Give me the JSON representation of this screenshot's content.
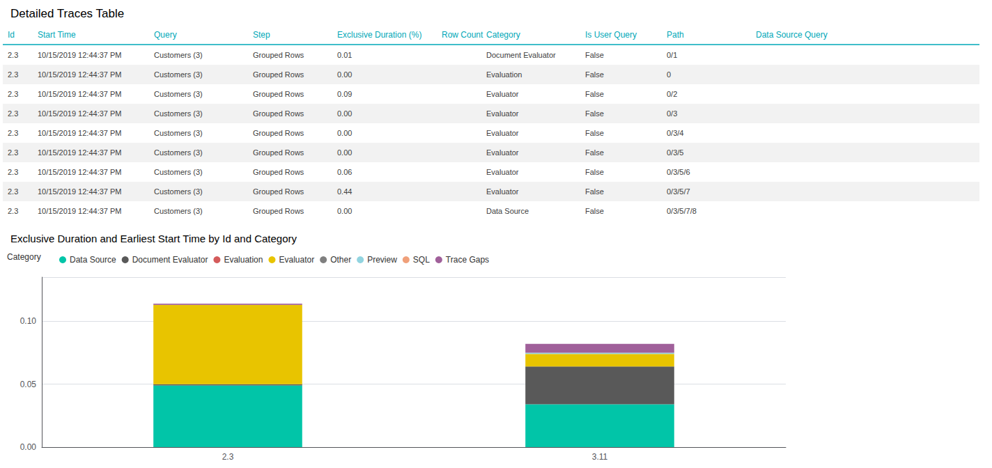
{
  "chart_data": [
    {
      "type": "table",
      "title": "Detailed Traces Table",
      "color": "#01A8B8",
      "columns": [
        "Id",
        "Start Time",
        "Query",
        "Step",
        "Exclusive Duration (%)",
        "Row Count",
        "Category",
        "Is User Query",
        "Path",
        "Data Source Query"
      ],
      "rows": [
        [
          "2.3",
          "10/15/2019 12:44:37 PM",
          "Customers (3)",
          "Grouped Rows",
          "0.01",
          null,
          "Document Evaluator",
          "False",
          "0/1",
          null
        ],
        [
          "2.3",
          "10/15/2019 12:44:37 PM",
          "Customers (3)",
          "Grouped Rows",
          "0.00",
          null,
          "Evaluation",
          "False",
          "0",
          null
        ],
        [
          "2.3",
          "10/15/2019 12:44:37 PM",
          "Customers (3)",
          "Grouped Rows",
          "0.09",
          null,
          "Evaluator",
          "False",
          "0/2",
          null
        ],
        [
          "2.3",
          "10/15/2019 12:44:37 PM",
          "Customers (3)",
          "Grouped Rows",
          "0.00",
          null,
          "Evaluator",
          "False",
          "0/3",
          null
        ],
        [
          "2.3",
          "10/15/2019 12:44:37 PM",
          "Customers (3)",
          "Grouped Rows",
          "0.00",
          null,
          "Evaluator",
          "False",
          "0/3/4",
          null
        ],
        [
          "2.3",
          "10/15/2019 12:44:37 PM",
          "Customers (3)",
          "Grouped Rows",
          "0.00",
          null,
          "Evaluator",
          "False",
          "0/3/5",
          null
        ],
        [
          "2.3",
          "10/15/2019 12:44:37 PM",
          "Customers (3)",
          "Grouped Rows",
          "0.06",
          null,
          "Evaluator",
          "False",
          "0/3/5/6",
          null
        ],
        [
          "2.3",
          "10/15/2019 12:44:37 PM",
          "Customers (3)",
          "Grouped Rows",
          "0.44",
          null,
          "Evaluator",
          "False",
          "0/3/5/7",
          null
        ],
        [
          "2.3",
          "10/15/2019 12:44:37 PM",
          "Customers (3)",
          "Grouped Rows",
          "0.00",
          null,
          "Data Source",
          "False",
          "0/3/5/7/8",
          null
        ]
      ]
    },
    {
      "type": "bar",
      "title": "Exclusive Duration and Earliest Start Time by Id and Category",
      "legend_title": "Category",
      "legend": "upper left",
      "stacked": true,
      "grid": true,
      "categories": [
        "2.3",
        "3.11"
      ],
      "series": [
        {
          "name": "Data Source",
          "color": "#01C5A8",
          "values": [
            0.049,
            0.034
          ]
        },
        {
          "name": "Document Evaluator",
          "color": "#595959",
          "values": [
            0.001,
            0.03
          ]
        },
        {
          "name": "Evaluation",
          "color": "#D45B5B",
          "values": [
            0.0,
            0.0
          ]
        },
        {
          "name": "Evaluator",
          "color": "#E8C400",
          "values": [
            0.063,
            0.01
          ]
        },
        {
          "name": "Other",
          "color": "#7F7F7F",
          "values": [
            0.0,
            0.0
          ]
        },
        {
          "name": "Preview",
          "color": "#92D4E0",
          "values": [
            0.0,
            0.001
          ]
        },
        {
          "name": "SQL",
          "color": "#F0A07A",
          "values": [
            0.0,
            0.0
          ]
        },
        {
          "name": "Trace Gaps",
          "color": "#A0609A",
          "values": [
            0.001,
            0.007
          ]
        }
      ],
      "ylim": [
        0.0,
        0.135
      ],
      "yticks": [
        {
          "value": 0.0,
          "label": "0.00"
        },
        {
          "value": 0.05,
          "label": "0.05"
        },
        {
          "value": 0.1,
          "label": "0.10"
        }
      ]
    }
  ]
}
